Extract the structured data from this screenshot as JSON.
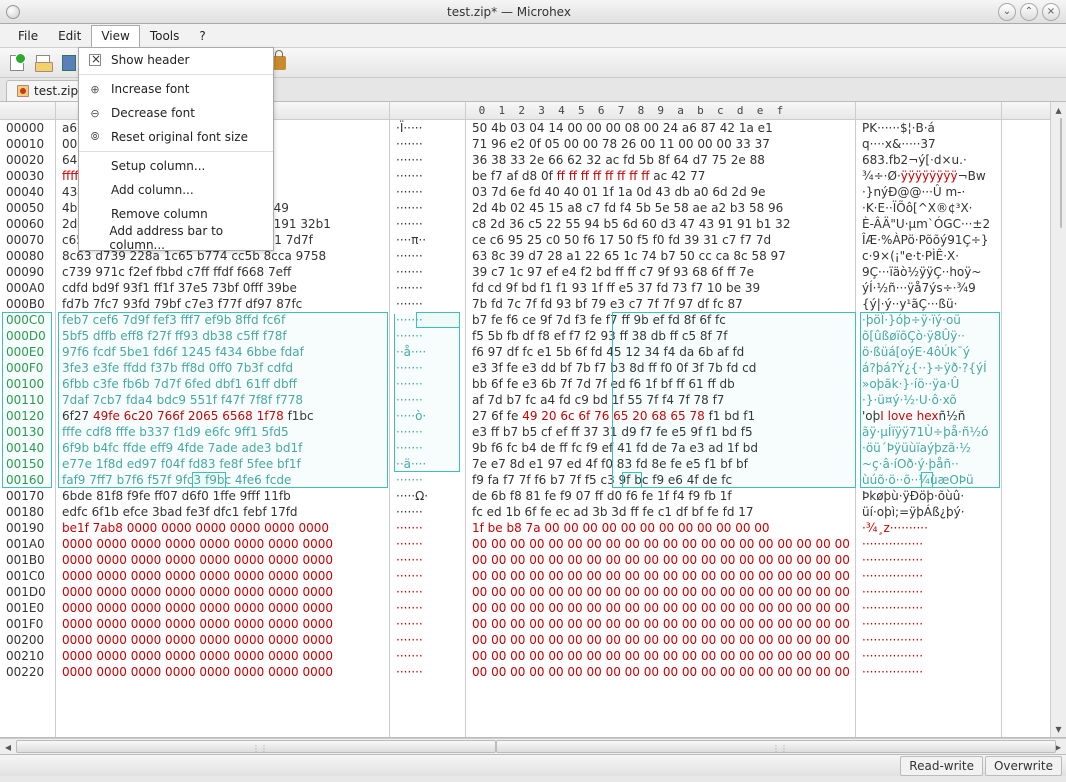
{
  "window": {
    "title": "test.zip* — Microhex"
  },
  "menubar": {
    "file": "File",
    "edit": "Edit",
    "view": "View",
    "tools": "Tools",
    "help": "?"
  },
  "dropdown": {
    "show_header": "Show header",
    "increase_font": "Increase font",
    "decrease_font": "Decrease font",
    "reset_font": "Reset original font size",
    "setup_column": "Setup column...",
    "add_column": "Add column...",
    "remove_column": "Remove column",
    "add_addr_bar": "Add address bar to column..."
  },
  "tab": {
    "label": "test.zip*"
  },
  "headers": {
    "addr": "",
    "hex1": "      a    c    e",
    "ascii1": "",
    "hex2": " 0  1  2  3  4  5  6  7  8  9  a  b  c  d  e  f",
    "ascii2": ""
  },
  "addresses": [
    "00000",
    "00010",
    "00020",
    "00030",
    "00040",
    "00050",
    "00060",
    "00070",
    "00080",
    "00090",
    "000A0",
    "000B0",
    "000C0",
    "000D0",
    "000E0",
    "000F0",
    "00100",
    "00110",
    "00120",
    "00130",
    "00140",
    "00150",
    "00160",
    "00170",
    "00180",
    "00190",
    "001A0",
    "001B0",
    "001C0",
    "001D0",
    "001E0",
    "001F0",
    "00200",
    "00210",
    "00220"
  ],
  "hex1": [
    "a624 4287 e11a",
    "0009 0000 3337",
    "648f 75d7 882e",
    "ffff acff 7742",
    "4340 0000 6e2d",
    "4b2d b71f 53cf 585e a2ac 58b3 9649",
    "2dc8 c536 5522 b594 606d 4743 9191 32b1",
    "c657 2565 5fc0 f550 f617 392f c731 7d7f",
    "8c63 d739 228a 1c65 b774 cc5b 8cca 9758",
    "c739 971c f2ef fbbd c7ff ffdf f668 7eff",
    "cdfd bd9f 93f1 ff1f 37e5 73bf 0fff 39be",
    "fd7b 7fc7 93fd 79bf c7e3 f77f df97 87fc",
    "feb7 cef6 7d9f fef3 fff7 ef9b 8ffd fc6f",
    "5bf5 dffb eff8 f27f ff93 db38 c5ff f78f",
    "97f6 fcdf 5be1 fd6f 1245 f434 6bbe fdaf",
    "3fe3 e3fe ffdd f37b ff8d 0ff0 7b3f cdfd",
    "6fbb c3fe fb6b 7d7f 6fed dbf1 61ff dbff",
    "7daf 7cb7 fda4 bdc9 551f f47f 7f8f f778",
    "6f27 49fe 6c20 766f 2065 6568 1f78 f1bc",
    "fffe cdf8 fffe b337 f1d9 e6fc 9ff1 5fd5",
    "6f9b b4fc ffde eff9 4fde 7ade ade3 bd1f",
    "e77e 1f8d ed97 f04f fd83 fe8f 5fee bf1f",
    "faf9 7ff7 b7f6 f57f 9fc3 f9bc 4fe6 fcde",
    "6bde 81f8 f9fe ff07 d6f0 1ffe 9fff 11fb",
    "edfc 6f1b efce 3bad fe3f dfc1 febf 17fd",
    "be1f 7ab8 0000 0000 0000 0000 0000 0000",
    "0000 0000 0000 0000 0000 0000 0000 0000",
    "0000 0000 0000 0000 0000 0000 0000 0000",
    "0000 0000 0000 0000 0000 0000 0000 0000",
    "0000 0000 0000 0000 0000 0000 0000 0000",
    "0000 0000 0000 0000 0000 0000 0000 0000",
    "0000 0000 0000 0000 0000 0000 0000 0000",
    "0000 0000 0000 0000 0000 0000 0000 0000",
    "0000 0000 0000 0000 0000 0000 0000 0000",
    "0000 0000 0000 0000 0000 0000 0000 0000"
  ],
  "ascii1": [
    "·Ï·····",
    "·······",
    "·······",
    "·······",
    "·······",
    "·······",
    "·······",
    "····π··",
    "·······",
    "·······",
    "·······",
    "·······",
    "·······",
    "·······",
    "··å····",
    "·······",
    "·······",
    "·······",
    "·····ò·",
    "·······",
    "·······",
    "··ä····",
    "·······",
    "·····Ω·",
    "·······",
    "·······",
    "·······",
    "·······",
    "·······",
    "·······",
    "·······",
    "·······",
    "·······",
    "·······",
    "·······"
  ],
  "hex2": [
    "50 4b 03 04 14 00 00 00 08 00 24 a6 87 42 1a e1",
    "71 96 e2 0f 05 00 00 78 26 00 11 00 00 00 33 37",
    "36 38 33 2e 66 62 32 ac fd 5b 8f 64 d7 75 2e 88",
    "be f7 af d8 0f ff ff ff ff ff ff ff ff ac 42 77",
    "03 7d 6e fd 40 40 01 1f 1a 0d 43 db a0 6d 2d 9e",
    "2d 4b 02 45 15 a8 c7 fd f4 5b 5e 58 ae a2 b3 58 96",
    "c8 2d 36 c5 22 55 94 b5 6d 60 d3 47 43 91 91 b1 32",
    "ce c6 95 25 c0 50 f6 17 50 f5 f0 fd 39 31 c7 f7 7d",
    "63 8c 39 d7 28 a1 22 65 1c 74 b7 50 cc ca 8c 58 97",
    "39 c7 1c 97 ef e4 f2 bd ff ff c7 9f 93 68 6f ff 7e",
    "fd cd 9f bd f1 f1 93 1f ff e5 37 fd 73 f7 10 be 39",
    "7b fd 7c 7f fd 93 bf 79 e3 c7 7f 7f 97 df fc 87",
    "b7 fe f6 ce 9f 7d f3 fe f7 ff 9b ef fd 8f 6f fc",
    "f5 5b fb df f8 ef f7 f2 93 ff 38 db ff c5 8f 7f",
    "f6 97 df fc e1 5b 6f fd 45 12 34 f4 da 6b af fd",
    "e3 3f fe e3 dd bf 7b f7 b3 8d ff f0 0f 3f 7b fd cd",
    "bb 6f fe e3 6b 7f 7d 7f ed f6 1f bf ff 61 ff db",
    "af 7d b7 fc a4 fd c9 bd 1f 55 7f f4 7f 78 f7",
    "27 6f fe 49 20 6c 6f 76 65 20 68 65 78 f1 bd f1",
    "e3 ff b7 b5 cf ef ff 37 31 d9 f7 fe e5 9f f1 bd f5",
    "9b f6 fc b4 de ff fc f9 ef 41 fd de 7a e3 ad 1f bd",
    "7e e7 8d e1 97 ed 4f f0 83 fd 8e fe e5 f1 bf bf",
    "f9 fa f7 7f f6 b7 7f f5 c3 9f bc f9 e6 4f de fc",
    "de 6b f8 81 fe f9 07 ff d0 f6 fe 1f f4 f9 fb 1f",
    "fc ed 1b 6f fe ec ad 3b 3d ff fe c1 df bf fe fd 17",
    "1f be b8 7a 00 00 00 00 00 00 00 00 00 00 00 00",
    "00 00 00 00 00 00 00 00 00 00 00 00 00 00 00 00 00 00 00 00",
    "00 00 00 00 00 00 00 00 00 00 00 00 00 00 00 00 00 00 00 00",
    "00 00 00 00 00 00 00 00 00 00 00 00 00 00 00 00 00 00 00 00",
    "00 00 00 00 00 00 00 00 00 00 00 00 00 00 00 00 00 00 00 00",
    "00 00 00 00 00 00 00 00 00 00 00 00 00 00 00 00 00 00 00 00",
    "00 00 00 00 00 00 00 00 00 00 00 00 00 00 00 00 00 00 00 00",
    "00 00 00 00 00 00 00 00 00 00 00 00 00 00 00 00 00 00 00 00",
    "00 00 00 00 00 00 00 00 00 00 00 00 00 00 00 00 00 00 00 00",
    "00 00 00 00 00 00 00 00 00 00 00 00 00 00 00 00 00 00 00 00"
  ],
  "ascii2": [
    "PK······$¦·B·á",
    "q····x&·····37",
    "683.fb2¬ý[·d×u.·",
    "¾÷·Ø·ÿÿÿÿÿÿÿÿ¬Bw",
    "·}nýÐ@@···Û m-·",
    "·K·E··ÏÕô[^X®¢³X·",
    "È-ÂÄ\"U·µm`ÓGC···±2",
    "ÎÆ·%ÀPö·Põõý91Ç÷}",
    "c·9×(¡\"e·t·PÌÊ·X·",
    "9Ç···ïäò½ÿÿÇ··hoÿ~",
    "ýÍ·½ñ···ÿå7ýs÷·¾9",
    "{ý|·ý··y¹ãÇ···ßü·",
    "·þöÏ·}óþ÷ÿ·ïý·oü",
    "õ[ûßøïõÇò·ÿ8Ûÿ··",
    "ö·ßüá[oýE·4ôÚk¯ý",
    "á?þá?Ý¿{··}÷ÿð·?{ýÍ",
    "»oþãk·}·íö··ÿa·Û",
    "·}·ü¤ý·½·U·ô·xõ",
    "'oþI love hexñ½ñ",
    "ãÿ·µÍïÿÿ71Ù÷þå·ñ½ó",
    "·öü´Þÿüùïaýþzã­·½",
    "~ç·â·íOð·ý·þåñ··",
    "ùúõ·ö··õ··¼ùæOÞü",
    "Þkøþù·ÿÐöþ·õùû·",
    "üí·oþì­;=ÿþÁß¿þý·",
    "·¾¸z··········",
    "················",
    "················",
    "················",
    "················",
    "················",
    "················",
    "················",
    "················",
    "················"
  ],
  "coloring": {
    "redRows": [
      25,
      26,
      27,
      28,
      29,
      30,
      31,
      32,
      33,
      34
    ],
    "hex2_row3_ff": "ff ff ff ff ff ff ff ff",
    "hex1_row3_ff": "ffff acff",
    "ilovehex": "I love hex",
    "hex1_row18_red": "49fe 6c20 766f 2065 6568 1f78",
    "hex2_row18_red": "49 20 6c 6f 76 65 20 68 65 78"
  },
  "status": {
    "rw": "Read-write",
    "ov": "Overwrite"
  },
  "colors": {
    "bg": "#ffffff",
    "panel": "#e8e8e8",
    "red": "#cc0000",
    "cyan": "#3cc0bb",
    "text": "#333333"
  },
  "selection": {
    "mainLeft": {
      "addr": [
        192,
        368,
        48
      ],
      "hex1": [
        192,
        368,
        330
      ],
      "asc1": [
        194,
        368,
        70
      ],
      "hex2": [
        192,
        368,
        384
      ],
      "asc2": [
        192,
        368,
        140
      ]
    }
  }
}
